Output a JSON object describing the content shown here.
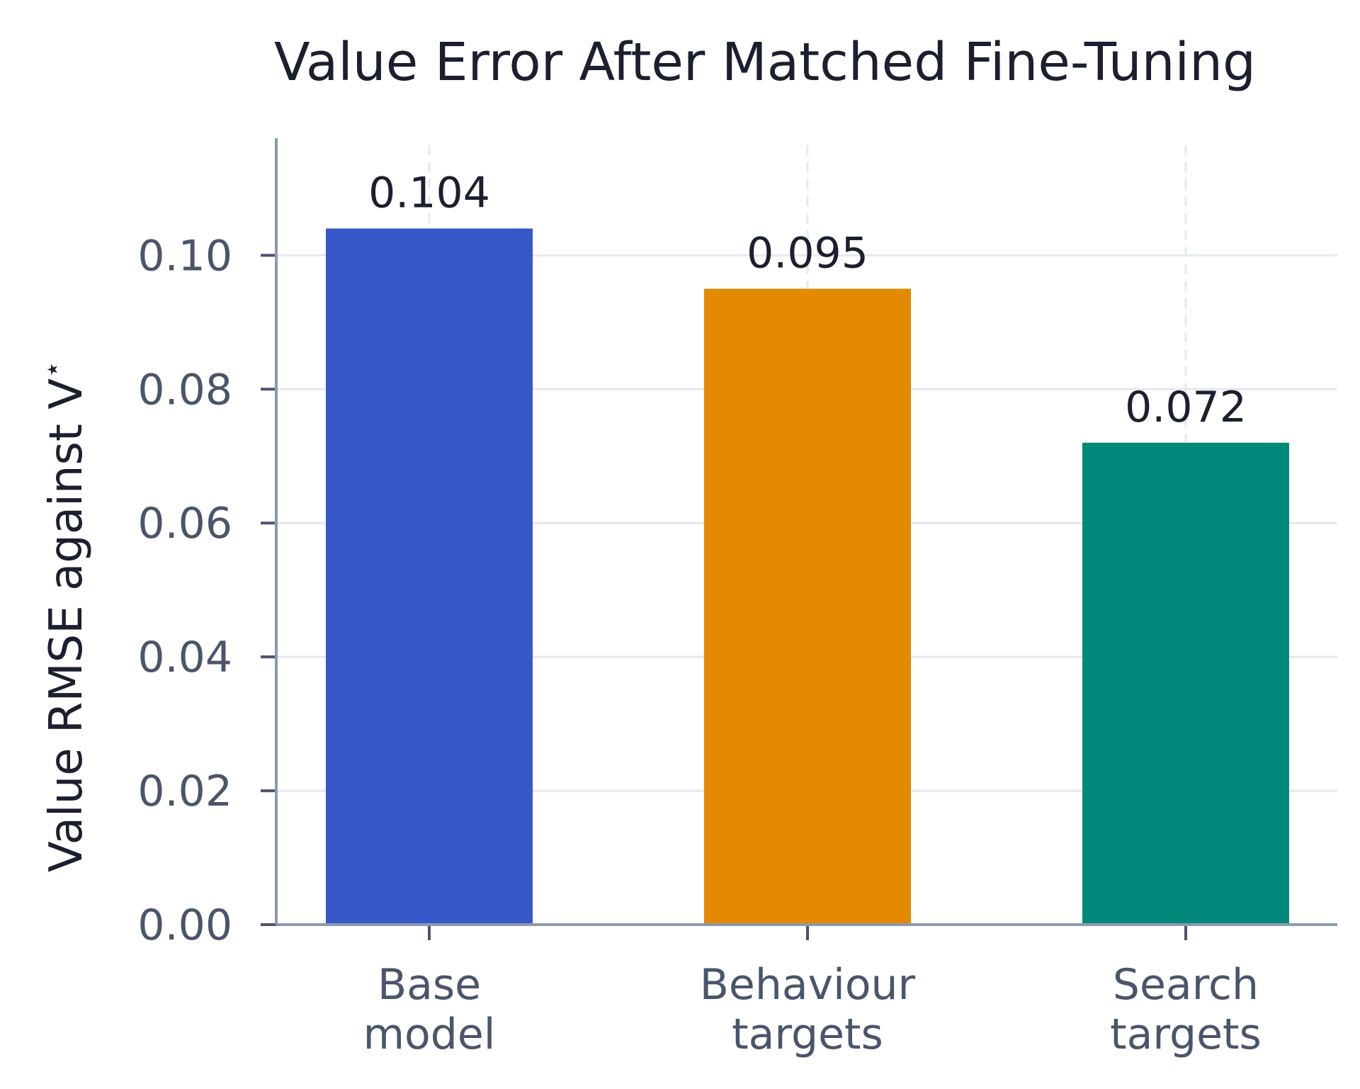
{
  "chart_data": {
    "type": "bar",
    "title": "Value Error After Matched Fine-Tuning",
    "xlabel": "",
    "ylabel": "Value RMSE against V",
    "ylabel_symbol_superscript": "⋆",
    "categories": [
      [
        "Base",
        "model"
      ],
      [
        "Behaviour",
        "targets"
      ],
      [
        "Search",
        "targets"
      ]
    ],
    "values": [
      0.104,
      0.095,
      0.072
    ],
    "value_labels": [
      "0.104",
      "0.095",
      "0.072"
    ],
    "colors": [
      "#3657c8",
      "#e38a00",
      "#00897a"
    ],
    "ylim": [
      0,
      0.1175
    ],
    "yticks": [
      0.0,
      0.02,
      0.04,
      0.06,
      0.08,
      0.1
    ],
    "ytick_labels": [
      "0.00",
      "0.02",
      "0.04",
      "0.06",
      "0.08",
      "0.10"
    ],
    "grid": true,
    "legend": "none"
  }
}
